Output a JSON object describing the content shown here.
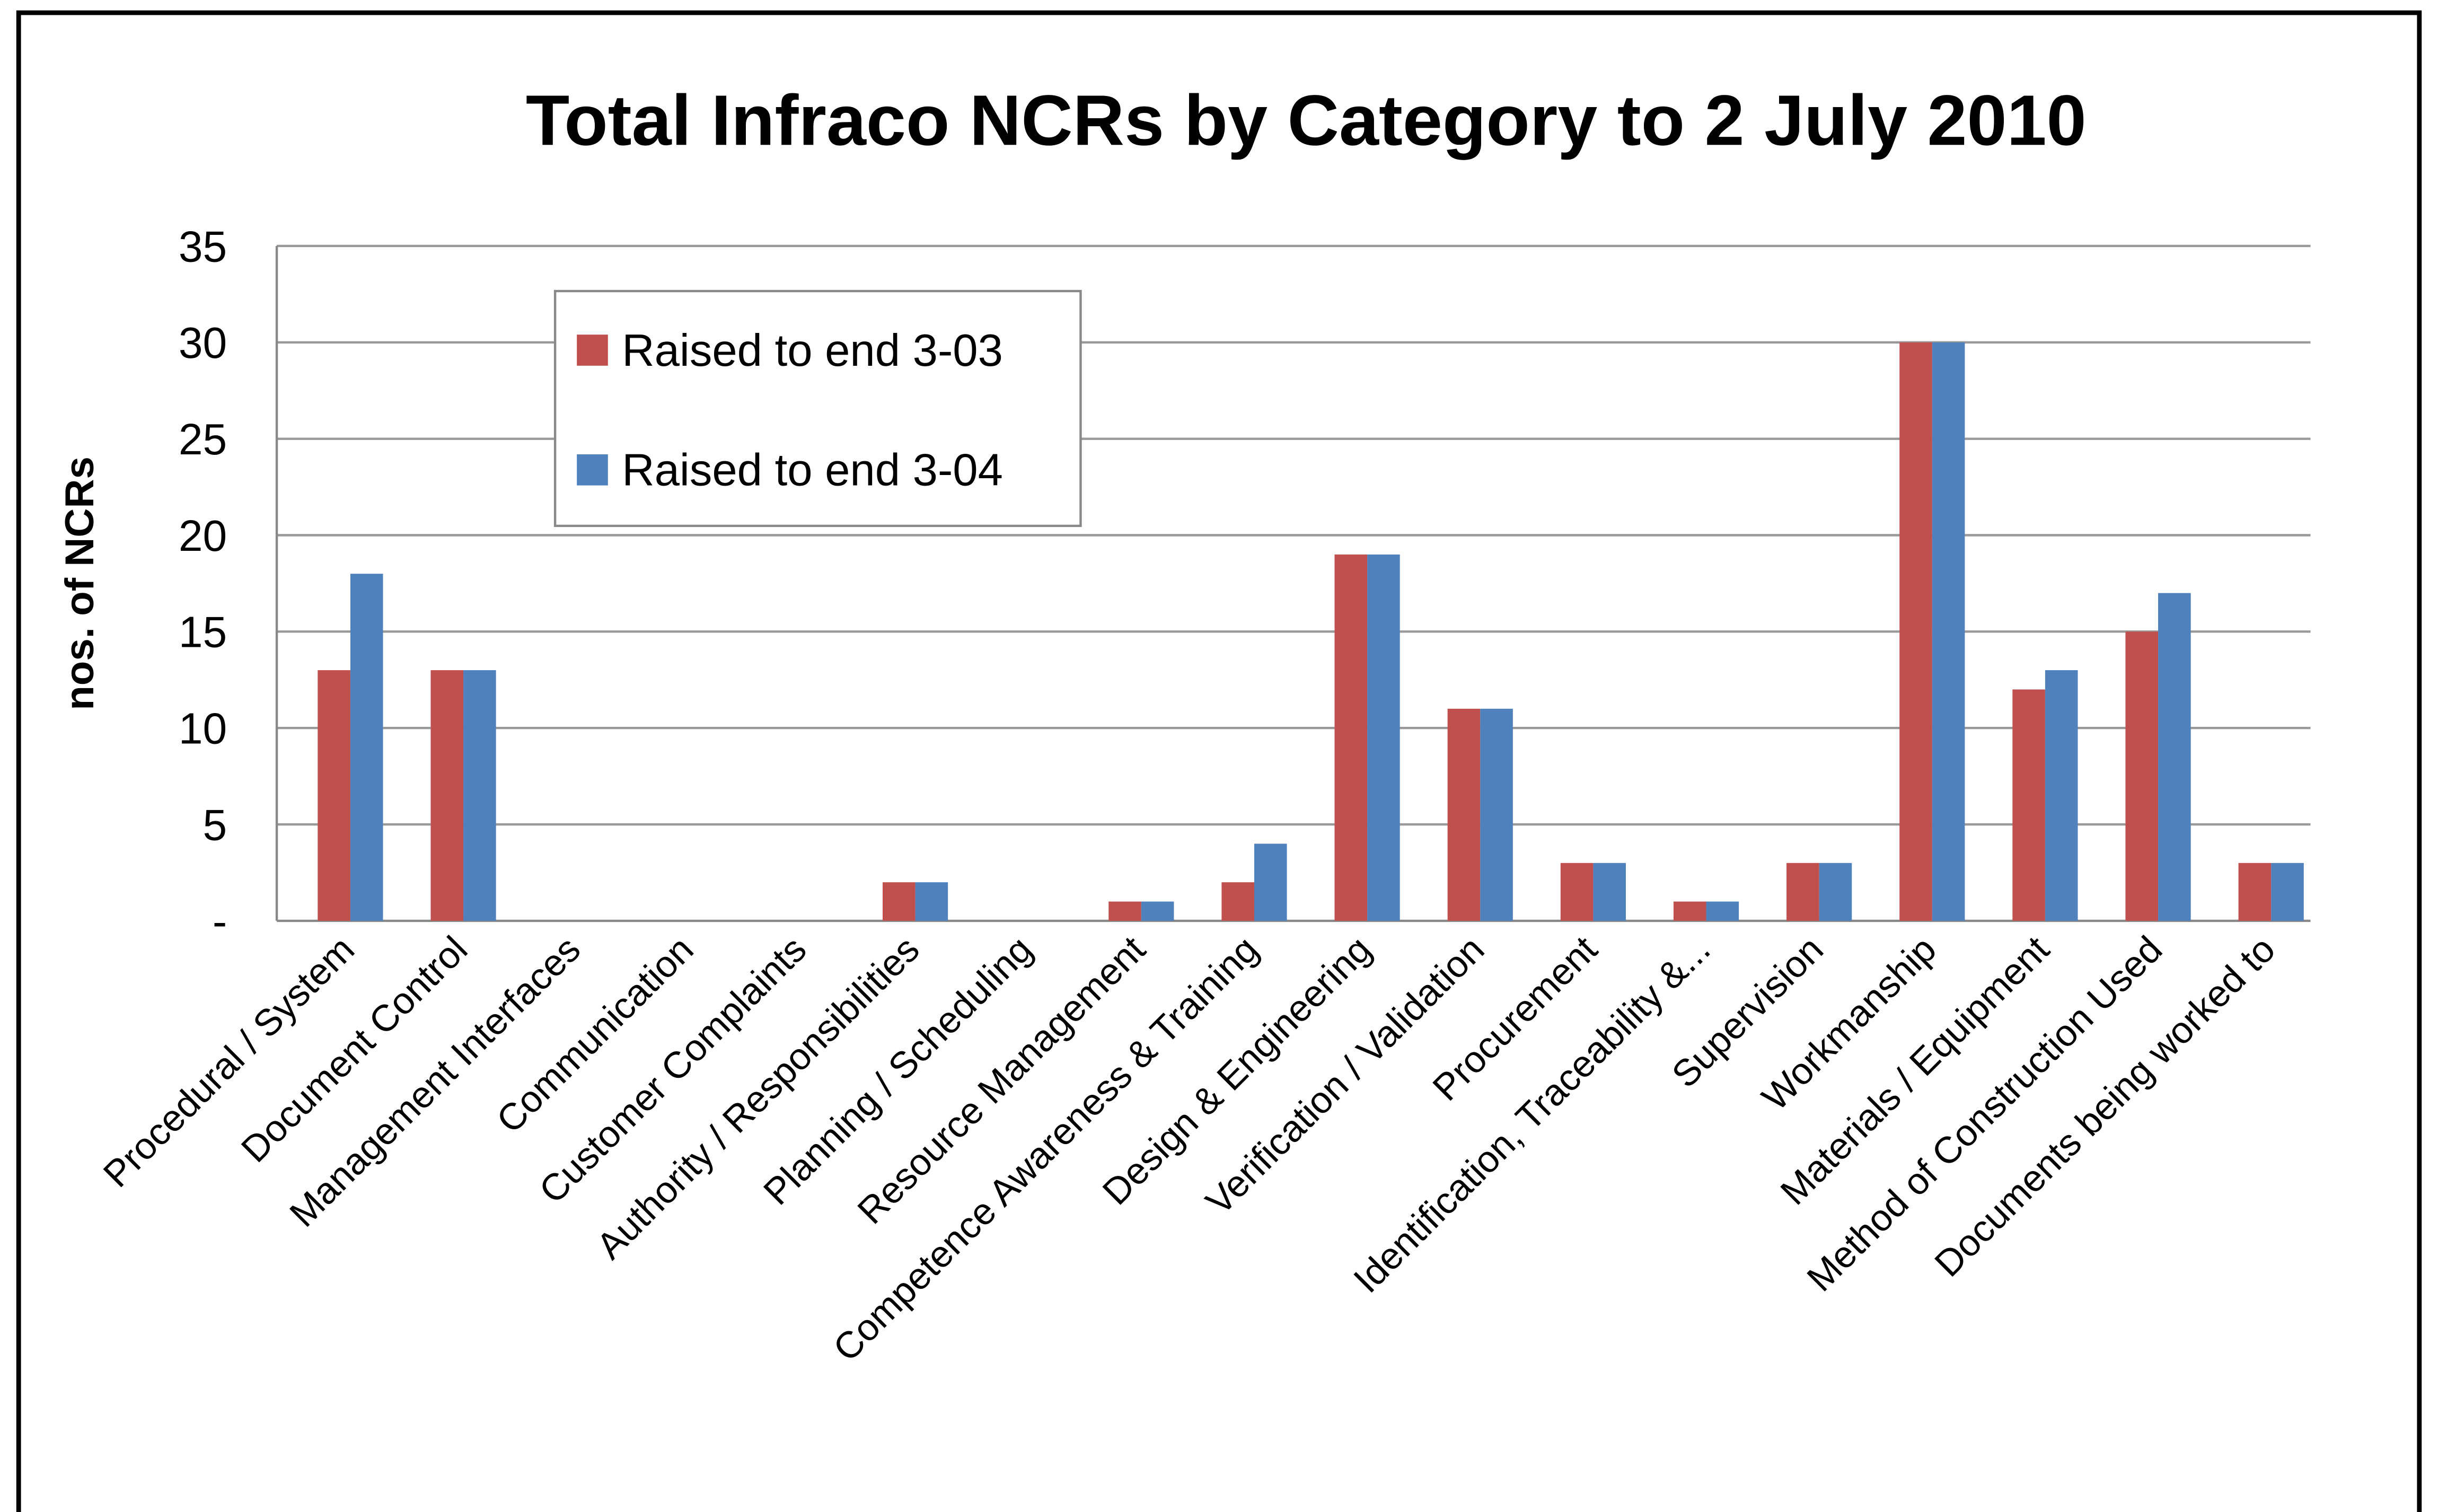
{
  "chart_data": {
    "type": "bar",
    "title": "Total Infraco NCRs by Category to 2 July 2010",
    "y_label": "nos. of NCRs",
    "categories": [
      "Procedural / System",
      "Document Control",
      "Management Interfaces",
      "Communication",
      "Customer Complaints",
      "Authority / Responsibilities",
      "Planning / Scheduling",
      "Resource Management",
      "Competence Awareness & Training",
      "Design & Engineering",
      "Verification / Validation",
      "Procurement",
      "Identification, Traceability &...",
      "Supervision",
      "Workmanship",
      "Materials / Equipment",
      "Method of Construction Used",
      "Documents being worked to"
    ],
    "series": [
      {
        "name": "Raised to end 3-03",
        "color": "#c0504d",
        "values": [
          13,
          13,
          0,
          0,
          0,
          2,
          0,
          1,
          2,
          19,
          11,
          3,
          1,
          3,
          30,
          12,
          15,
          3
        ]
      },
      {
        "name": "Raised to end 3-04",
        "color": "#4f81bd",
        "values": [
          18,
          13,
          0,
          0,
          0,
          2,
          0,
          1,
          4,
          19,
          11,
          3,
          1,
          3,
          30,
          13,
          17,
          3
        ]
      }
    ],
    "ylim": [
      0,
      35
    ],
    "yticks": [
      {
        "value": 0,
        "label": "-"
      },
      5,
      10,
      15,
      20,
      25,
      30,
      35
    ],
    "grid": true
  }
}
